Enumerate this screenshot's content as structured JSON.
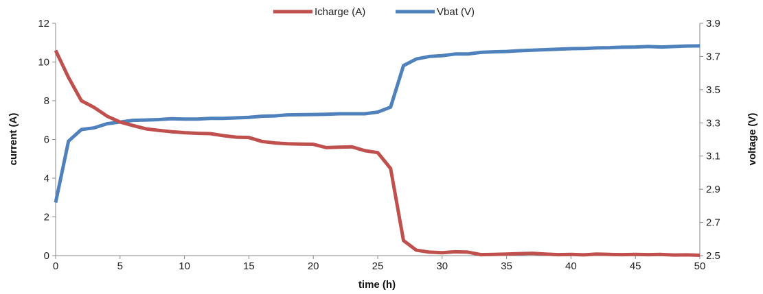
{
  "chart_data": {
    "type": "line",
    "title": "",
    "xlabel": "time (h)",
    "ylabel_left": "current (A)",
    "ylabel_right": "voltage (V)",
    "xlim": [
      0,
      50
    ],
    "ylim_left": [
      0,
      12
    ],
    "ylim_right": [
      2.5,
      3.9
    ],
    "x_ticks": [
      "0",
      "5",
      "10",
      "15",
      "20",
      "25",
      "30",
      "35",
      "40",
      "45",
      "50"
    ],
    "y_left_ticks": [
      "0",
      "2",
      "4",
      "6",
      "8",
      "10",
      "12"
    ],
    "y_right_ticks": [
      "2.5",
      "2.7",
      "2.9",
      "3.1",
      "3.3",
      "3.5",
      "3.7",
      "3.9"
    ],
    "grid": false,
    "legend_position": "top-center",
    "x": [
      0,
      1,
      2,
      3,
      4,
      5,
      6,
      7,
      8,
      9,
      10,
      11,
      12,
      13,
      14,
      15,
      16,
      17,
      18,
      19,
      20,
      21,
      22,
      23,
      24,
      25,
      26,
      27,
      28,
      29,
      30,
      31,
      32,
      33,
      34,
      35,
      36,
      37,
      38,
      39,
      40,
      41,
      42,
      43,
      44,
      45,
      46,
      47,
      48,
      49,
      50
    ],
    "series": [
      {
        "name": "Icharge (A)",
        "axis": "left",
        "color": "#c0504d",
        "values": [
          10.6,
          9.2,
          8.0,
          7.65,
          7.2,
          6.9,
          6.72,
          6.55,
          6.47,
          6.4,
          6.35,
          6.32,
          6.3,
          6.2,
          6.12,
          6.1,
          5.9,
          5.82,
          5.78,
          5.76,
          5.75,
          5.58,
          5.6,
          5.62,
          5.42,
          5.32,
          4.5,
          0.78,
          0.28,
          0.18,
          0.15,
          0.2,
          0.18,
          0.05,
          0.06,
          0.08,
          0.1,
          0.12,
          0.08,
          0.05,
          0.06,
          0.04,
          0.08,
          0.06,
          0.05,
          0.06,
          0.05,
          0.06,
          0.03,
          0.04,
          0.02
        ]
      },
      {
        "name": "Vbat (V)",
        "axis": "right",
        "color": "#4f81bd",
        "values": [
          2.82,
          3.19,
          3.26,
          3.27,
          3.295,
          3.305,
          3.315,
          3.317,
          3.32,
          3.325,
          3.323,
          3.323,
          3.327,
          3.327,
          3.33,
          3.333,
          3.34,
          3.342,
          3.348,
          3.349,
          3.35,
          3.352,
          3.355,
          3.355,
          3.355,
          3.365,
          3.395,
          3.645,
          3.685,
          3.7,
          3.705,
          3.715,
          3.715,
          3.725,
          3.728,
          3.73,
          3.735,
          3.738,
          3.741,
          3.744,
          3.747,
          3.748,
          3.752,
          3.753,
          3.756,
          3.757,
          3.76,
          3.757,
          3.76,
          3.763,
          3.764
        ]
      }
    ]
  }
}
